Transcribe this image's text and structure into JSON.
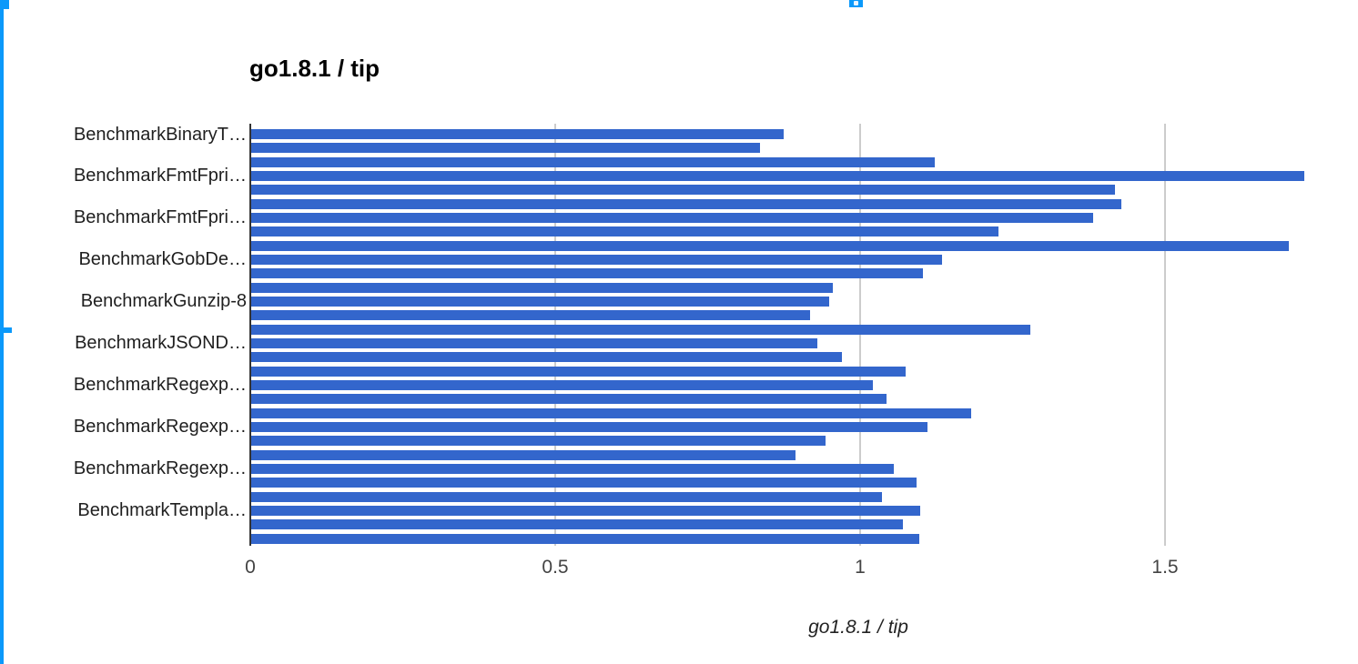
{
  "chart": {
    "title": "go1.8.1 / tip",
    "x_axis_title": "go1.8.1 / tip"
  },
  "chart_data": {
    "type": "bar",
    "orientation": "horizontal",
    "title": "go1.8.1 / tip",
    "xlabel": "go1.8.1 / tip",
    "ylabel": "",
    "xlim": [
      0,
      1.82
    ],
    "grid": true,
    "legend": "none",
    "ticks": [
      {
        "label": "0",
        "value": 0
      },
      {
        "label": "0.5",
        "value": 0.5
      },
      {
        "label": "1",
        "value": 1
      },
      {
        "label": "1.5",
        "value": 1.5
      }
    ],
    "categories": [
      "BenchmarkBinaryT…",
      "",
      "",
      "BenchmarkFmtFpri…",
      "",
      "",
      "BenchmarkFmtFpri…",
      "",
      "",
      "BenchmarkGobDe…",
      "",
      "",
      "BenchmarkGunzip-8",
      "",
      "",
      "BenchmarkJSOND…",
      "",
      "",
      "BenchmarkRegexp…",
      "",
      "",
      "BenchmarkRegexp…",
      "",
      "",
      "BenchmarkRegexp…",
      "",
      "",
      "BenchmarkTempla…",
      "",
      ""
    ],
    "values": [
      0.873,
      0.834,
      1.121,
      1.727,
      1.416,
      1.427,
      1.38,
      1.225,
      1.701,
      1.133,
      1.101,
      0.954,
      0.948,
      0.916,
      1.278,
      0.928,
      0.969,
      1.073,
      1.02,
      1.042,
      1.181,
      1.109,
      0.942,
      0.892,
      1.053,
      1.091,
      1.035,
      1.097,
      1.069,
      1.096
    ]
  },
  "colors": {
    "bar": "#3366cc",
    "axis_line": "#333333",
    "gridline": "#cccccc",
    "tick_label": "#444444",
    "selection_blue": "#0b99fa"
  }
}
